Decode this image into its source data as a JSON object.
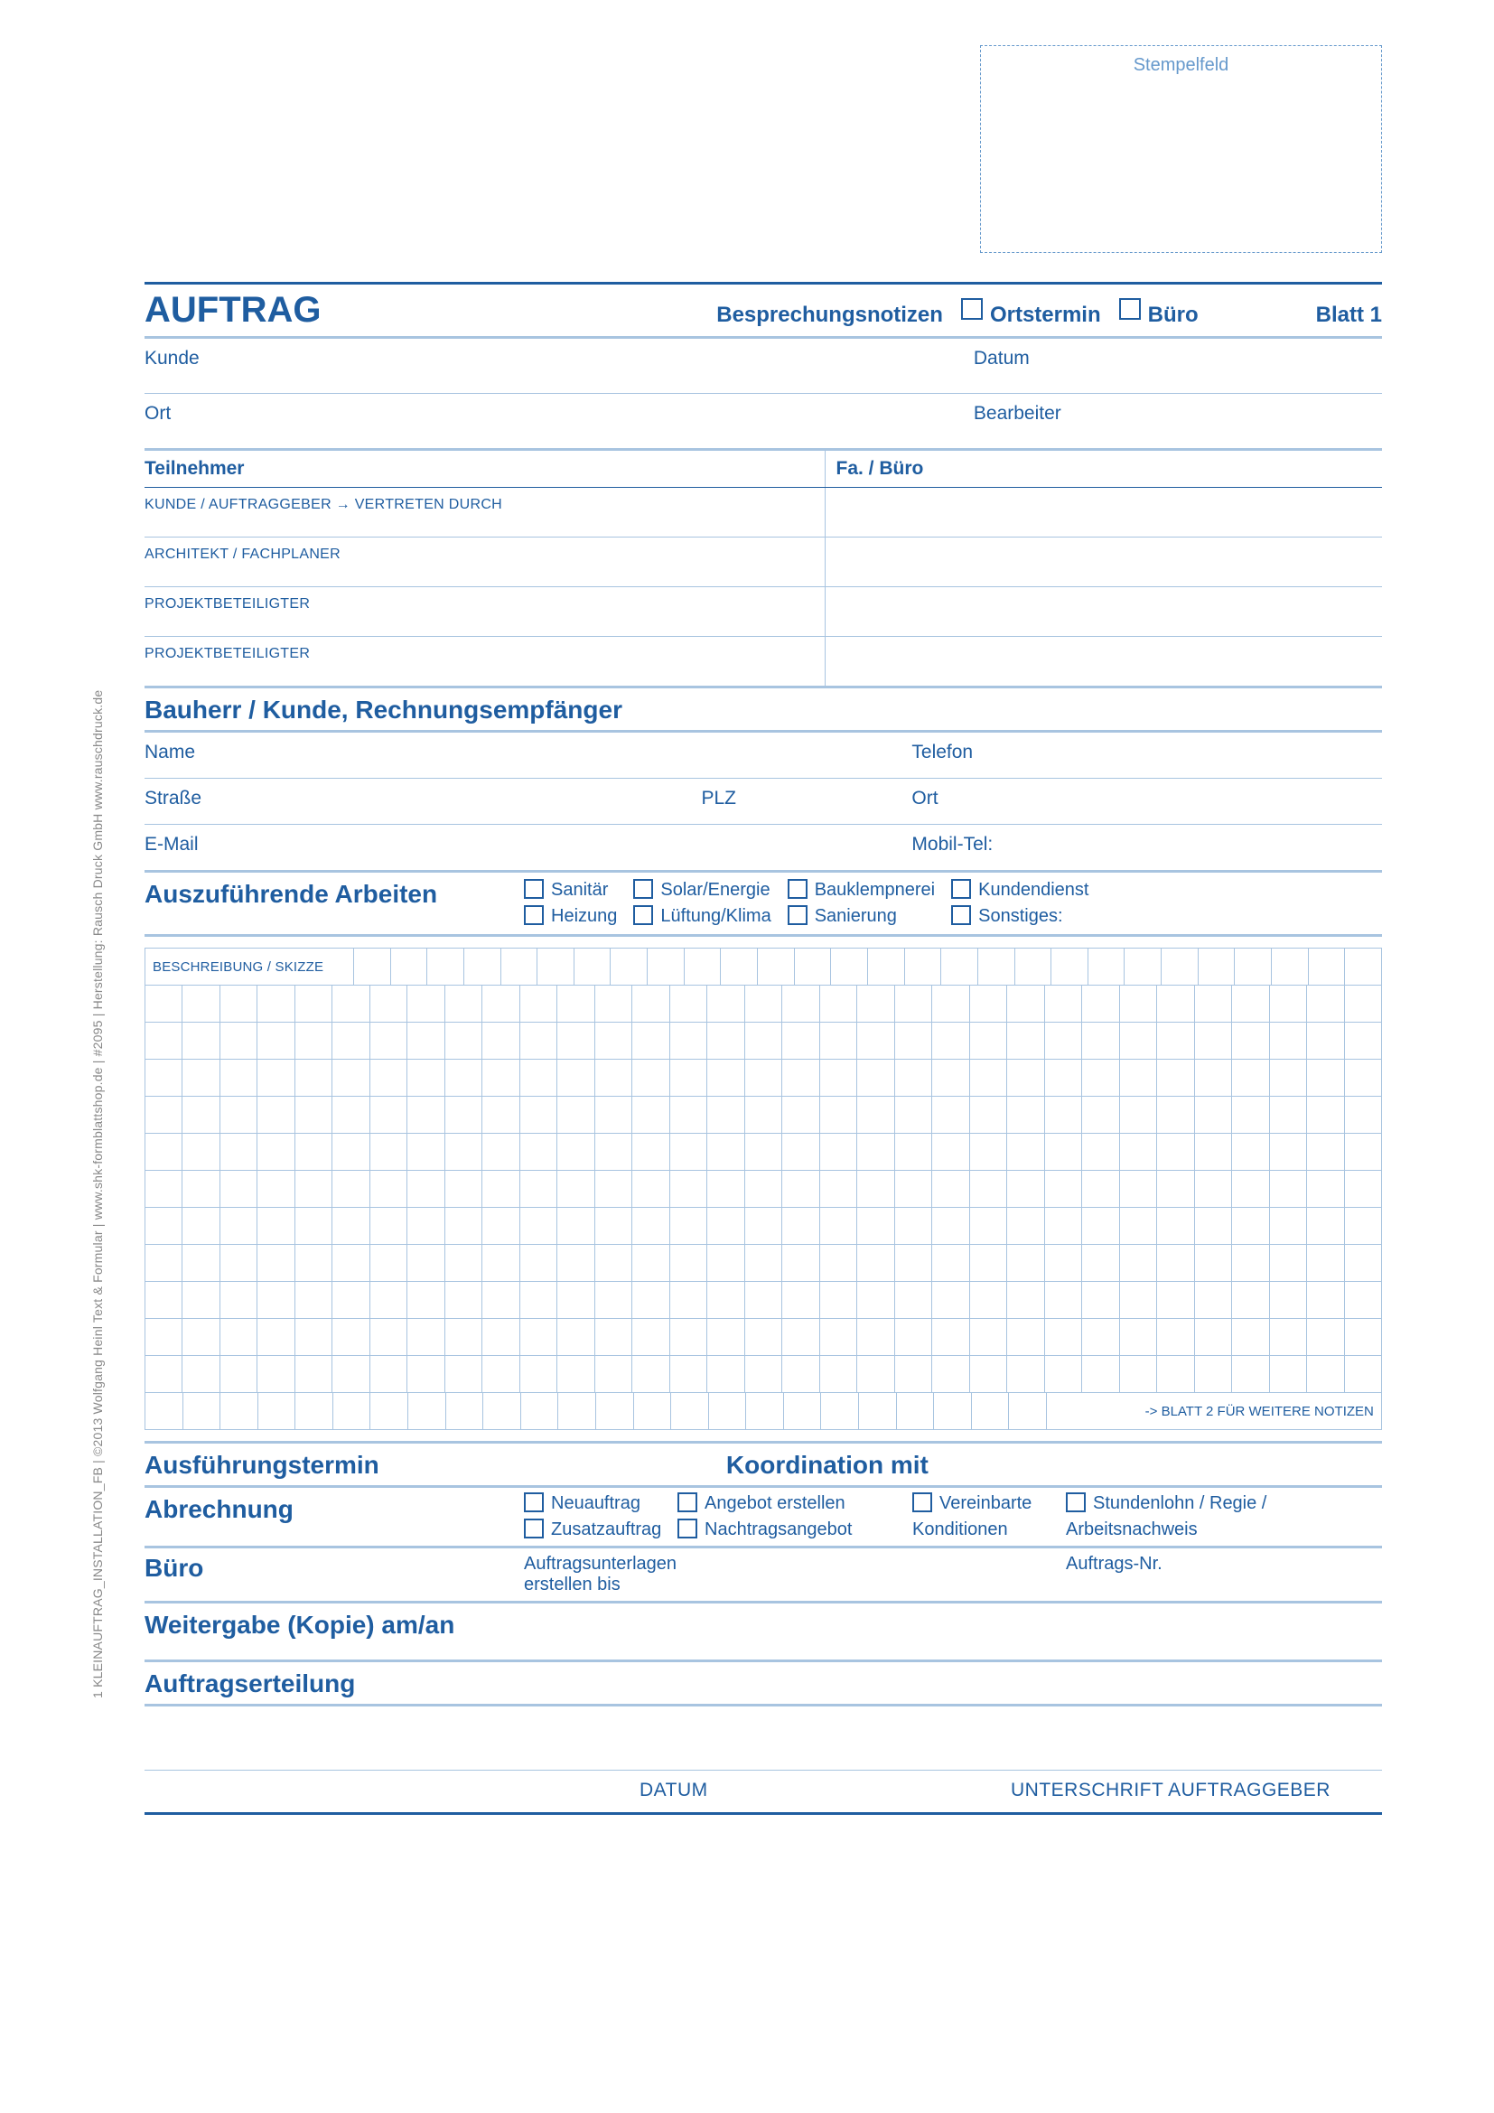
{
  "colors": {
    "primary": "#1f5da0",
    "light": "#a8c4e0",
    "bg": "#ffffff"
  },
  "stamp_label": "Stempelfeld",
  "title": "AUFTRAG",
  "title_notes": "Besprechungsnotizen",
  "title_check_ort": "Ortstermin",
  "title_check_buro": "Büro",
  "blatt": "Blatt 1",
  "row1_left": "Kunde",
  "row1_right": "Datum",
  "row2_left": "Ort",
  "row2_right": "Bearbeiter",
  "teilnehmer_head": "Teilnehmer",
  "fa_buro_head": "Fa. / Büro",
  "tn_rows": [
    "KUNDE / AUFTRAGGEBER   →  VERTRETEN DURCH",
    "ARCHITEKT / FACHPLANER",
    "PROJEKTBETEILIGTER",
    "PROJEKTBETEILIGTER"
  ],
  "bauherr_head": "Bauherr / Kunde, Rechnungsempfänger",
  "bauherr_name": "Name",
  "bauherr_tel": "Telefon",
  "bauherr_str": "Straße",
  "bauherr_plz": "PLZ",
  "bauherr_ort": "Ort",
  "bauherr_email": "E-Mail",
  "bauherr_mobil": "Mobil-Tel:",
  "arbeiten_head": "Auszuführende Arbeiten",
  "arbeiten_checks_r1": [
    "Sanitär",
    "Solar/Energie",
    "Bauklempnerei",
    "Kundendienst"
  ],
  "arbeiten_checks_r2": [
    "Heizung",
    "Lüftung/Klima",
    "Sanierung",
    "Sonstiges:"
  ],
  "grid_label": "BESCHREIBUNG / SKIZZE",
  "grid_cols": 33,
  "grid_rows": 13,
  "grid_footer": "-> BLATT 2 FÜR WEITERE NOTIZEN",
  "ausfuehrungstermin": "Ausführungstermin",
  "koordination": "Koordination mit",
  "abrechnung": "Abrechnung",
  "abrech_r1": [
    "Neuauftrag",
    "Angebot erstellen",
    "Vereinbarte",
    "Stundenlohn / Regie /"
  ],
  "abrech_r2": [
    "Zusatzauftrag",
    "Nachtragsangebot",
    "Konditionen",
    "Arbeitsnachweis"
  ],
  "buro_head": "Büro",
  "buro_sub1": "Auftragsunterlagen",
  "buro_sub2": "erstellen bis",
  "buro_nr": "Auftrags-Nr.",
  "weitergabe": "Weitergabe (Kopie) am/an",
  "auftragserteilung": "Auftragserteilung",
  "datum_label": "DATUM",
  "unterschrift_label": "UNTERSCHRIFT AUFTRAGGEBER",
  "sidetext": "1 KLEINAUFTRAG_INSTALLATION_FB | ©2013  Wolfgang Heinl Text & Formular | www.shk-formblattshop.de | #2095 | Herstellung: Rausch Druck GmbH www.rauschdruck.de"
}
